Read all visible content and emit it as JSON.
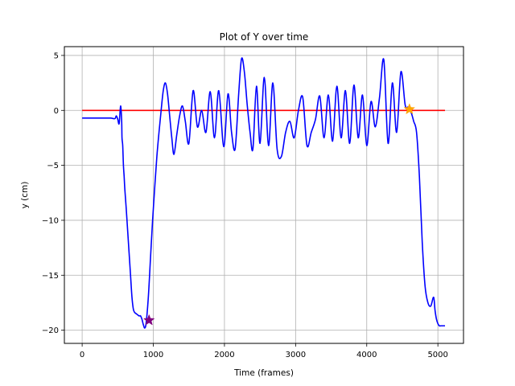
{
  "chart_data": {
    "type": "line",
    "title": "Plot of Y over time",
    "xlabel": "Time (frames)",
    "ylabel": "y (cm)",
    "xlim": [
      -250,
      5360
    ],
    "ylim": [
      -21.2,
      5.8
    ],
    "xticks": [
      0,
      1000,
      2000,
      3000,
      4000,
      5000
    ],
    "yticks": [
      5,
      0,
      -5,
      -10,
      -15,
      -20
    ],
    "grid": true,
    "colors": {
      "y_series": "#0000ff",
      "reference": "#ff0000",
      "start_marker": "#800080",
      "end_marker": "#ffa500"
    },
    "series": [
      {
        "x": [
          0,
          100,
          200,
          300,
          400,
          460,
          480,
          500,
          520,
          540,
          555,
          560,
          570,
          580,
          590,
          600,
          620,
          640,
          660,
          680,
          700,
          720,
          740,
          760,
          780,
          800,
          820,
          840,
          860,
          880,
          900,
          930,
          960,
          990,
          1020,
          1050,
          1080,
          1110,
          1140,
          1170,
          1200,
          1230,
          1260,
          1290,
          1330,
          1370,
          1410,
          1450,
          1500,
          1560,
          1620,
          1680,
          1740,
          1800,
          1860,
          1920,
          1990,
          2050,
          2100,
          2150,
          2200,
          2240,
          2280,
          2320,
          2360,
          2400,
          2450,
          2500,
          2560,
          2620,
          2680,
          2740,
          2800,
          2860,
          2920,
          2980,
          3040,
          3100,
          3160,
          3220,
          3280,
          3340,
          3400,
          3460,
          3520,
          3580,
          3640,
          3700,
          3760,
          3820,
          3880,
          3940,
          4000,
          4060,
          4120,
          4180,
          4240,
          4300,
          4360,
          4420,
          4480,
          4540,
          4580,
          4600,
          4630,
          4660,
          4700,
          4740,
          4780,
          4820,
          4860,
          4900,
          4940,
          4960,
          4980,
          5000,
          5020,
          5040,
          5060,
          5080,
          5100
        ],
        "y": [
          -0.7,
          -0.7,
          -0.7,
          -0.7,
          -0.7,
          -0.75,
          -0.5,
          -0.8,
          -1.2,
          0.4,
          -0.9,
          -2.5,
          -3.2,
          -5.0,
          -6.0,
          -7.2,
          -9.0,
          -11.0,
          -13.0,
          -15.0,
          -17.0,
          -18.1,
          -18.4,
          -18.5,
          -18.6,
          -18.7,
          -18.7,
          -19.0,
          -19.5,
          -19.8,
          -19.3,
          -17.0,
          -13.5,
          -10.0,
          -7.0,
          -4.2,
          -2.0,
          0.0,
          1.8,
          2.5,
          1.5,
          -0.5,
          -2.5,
          -4.0,
          -2.2,
          -0.5,
          0.4,
          -1.0,
          -3.0,
          1.8,
          -1.5,
          0.0,
          -2.0,
          1.7,
          -2.5,
          1.8,
          -3.3,
          1.5,
          -2.0,
          -3.5,
          1.5,
          4.7,
          3.5,
          0.5,
          -2.0,
          -3.5,
          2.2,
          -3.0,
          3.0,
          -3.2,
          2.5,
          -3.5,
          -4.2,
          -2.0,
          -1.0,
          -2.5,
          0.0,
          1.2,
          -3.2,
          -2.0,
          -0.8,
          1.3,
          -2.5,
          1.4,
          -2.8,
          2.2,
          -2.5,
          1.8,
          -3.0,
          2.3,
          -2.5,
          1.4,
          -3.2,
          0.8,
          -1.5,
          1.2,
          4.6,
          -3.0,
          2.5,
          -2.0,
          3.5,
          0.5,
          0.3,
          0.1,
          -0.3,
          -1.0,
          -2.0,
          -6.0,
          -12.0,
          -16.0,
          -17.5,
          -17.8,
          -17.0,
          -18.2,
          -19.0,
          -19.4,
          -19.6,
          -19.6,
          -19.6,
          -19.6,
          -19.6
        ]
      },
      {
        "x": [
          0,
          5100
        ],
        "y": [
          0,
          0
        ]
      }
    ],
    "markers": [
      {
        "x": 940,
        "y": -19.1,
        "shape": "star",
        "color": "#800080"
      },
      {
        "x": 4600,
        "y": 0.1,
        "shape": "star",
        "color": "#ffa500"
      }
    ]
  }
}
